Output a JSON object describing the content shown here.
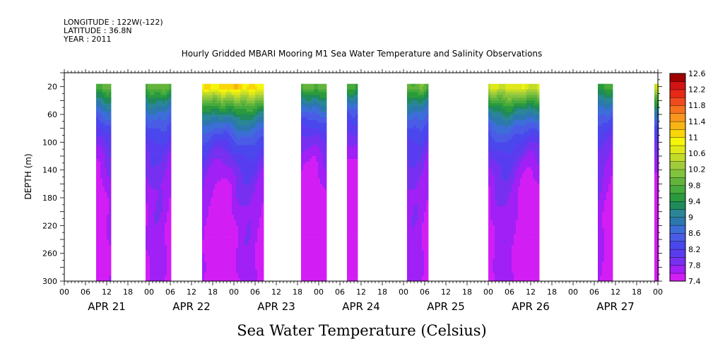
{
  "header": {
    "longitude": "LONGITUDE : 122W(-122)",
    "latitude": "LATITUDE : 36.8N",
    "year": "YEAR : 2011"
  },
  "chart_data": {
    "type": "heatmap",
    "title": "Hourly Gridded MBARI Mooring M1 Sea Water Temperature and Salinity Observations",
    "xlabel": "Sea Water Temperature (Celsius)",
    "ylabel": "DEPTH (m)",
    "x_units": "hours since APR 21 2011 00:00",
    "xlim": [
      0,
      168
    ],
    "ylim": [
      300,
      0
    ],
    "y_ticks": [
      20,
      60,
      100,
      140,
      180,
      220,
      260,
      300
    ],
    "x_hour_ticks": [
      "00",
      "06",
      "12",
      "18",
      "00",
      "06",
      "12",
      "18",
      "00",
      "06",
      "12",
      "18",
      "00",
      "06",
      "12",
      "18",
      "00",
      "06",
      "12",
      "18",
      "00",
      "06",
      "12",
      "18",
      "00",
      "06",
      "12",
      "18",
      "00"
    ],
    "dates": [
      "APR 21",
      "APR 22",
      "APR 23",
      "APR 24",
      "APR 25",
      "APR 26",
      "APR 27"
    ],
    "colorbar": {
      "levels": [
        7.4,
        7.6,
        7.8,
        8.0,
        8.2,
        8.4,
        8.6,
        8.8,
        9.0,
        9.2,
        9.4,
        9.6,
        9.8,
        10.0,
        10.2,
        10.4,
        10.6,
        10.8,
        11.0,
        11.2,
        11.4,
        11.6,
        11.8,
        12.0,
        12.2,
        12.4,
        12.6
      ],
      "labels": [
        "12.6",
        "12.2",
        "11.8",
        "11.4",
        "11",
        "10.6",
        "10.2",
        "9.8",
        "9.4",
        "9",
        "8.6",
        "8.2",
        "7.8",
        "7.4"
      ],
      "colors": [
        "#d21ef5",
        "#a020f5",
        "#7830f0",
        "#5a3cf0",
        "#4a48ec",
        "#4a5ce6",
        "#3c6ed8",
        "#2c78ae",
        "#2a8696",
        "#1f8a5a",
        "#2a9a3c",
        "#46aa3c",
        "#64b43c",
        "#82c43c",
        "#a0cc3c",
        "#c2dc28",
        "#e0e81a",
        "#f5f50a",
        "#f8d60a",
        "#f8b414",
        "#f8961e",
        "#f5731e",
        "#f04b1e",
        "#e62814",
        "#d21414",
        "#a00000"
      ]
    },
    "observation_blocks_hours": [
      [
        9,
        13
      ],
      [
        23,
        30
      ],
      [
        39,
        56
      ],
      [
        67,
        74
      ],
      [
        80,
        83
      ],
      [
        97,
        103
      ],
      [
        120,
        134
      ],
      [
        151,
        155
      ],
      [
        167,
        169
      ]
    ],
    "peak_surface_temp": [
      {
        "block": 0,
        "surface": 10.0
      },
      {
        "block": 1,
        "surface": 10.0
      },
      {
        "block": 2,
        "surface": 11.2
      },
      {
        "block": 3,
        "surface": 10.0
      },
      {
        "block": 4,
        "surface": 9.8
      },
      {
        "block": 5,
        "surface": 10.0
      },
      {
        "block": 6,
        "surface": 10.8
      },
      {
        "block": 7,
        "surface": 9.8
      },
      {
        "block": 8,
        "surface": 10.8
      }
    ]
  }
}
